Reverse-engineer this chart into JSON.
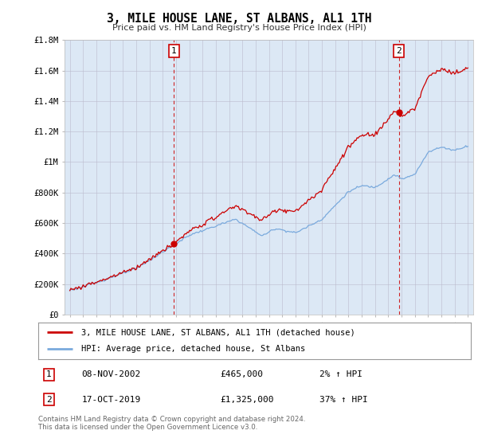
{
  "title": "3, MILE HOUSE LANE, ST ALBANS, AL1 1TH",
  "subtitle": "Price paid vs. HM Land Registry's House Price Index (HPI)",
  "plot_bg_color": "#dce8f5",
  "ylim": [
    0,
    1800000
  ],
  "yticks": [
    0,
    200000,
    400000,
    600000,
    800000,
    1000000,
    1200000,
    1400000,
    1600000,
    1800000
  ],
  "ytick_labels": [
    "£0",
    "£200K",
    "£400K",
    "£600K",
    "£800K",
    "£1M",
    "£1.2M",
    "£1.4M",
    "£1.6M",
    "£1.8M"
  ],
  "sale1_date": 2002.85,
  "sale1_price": 465000,
  "sale2_date": 2019.79,
  "sale2_price": 1325000,
  "line_color_property": "#cc0000",
  "line_color_hpi": "#7aaadd",
  "dashed_line_color": "#cc0000",
  "legend_label_property": "3, MILE HOUSE LANE, ST ALBANS, AL1 1TH (detached house)",
  "legend_label_hpi": "HPI: Average price, detached house, St Albans",
  "footer_text": "Contains HM Land Registry data © Crown copyright and database right 2024.\nThis data is licensed under the Open Government Licence v3.0.",
  "table_row1": [
    "1",
    "08-NOV-2002",
    "£465,000",
    "2% ↑ HPI"
  ],
  "table_row2": [
    "2",
    "17-OCT-2019",
    "£1,325,000",
    "37% ↑ HPI"
  ]
}
